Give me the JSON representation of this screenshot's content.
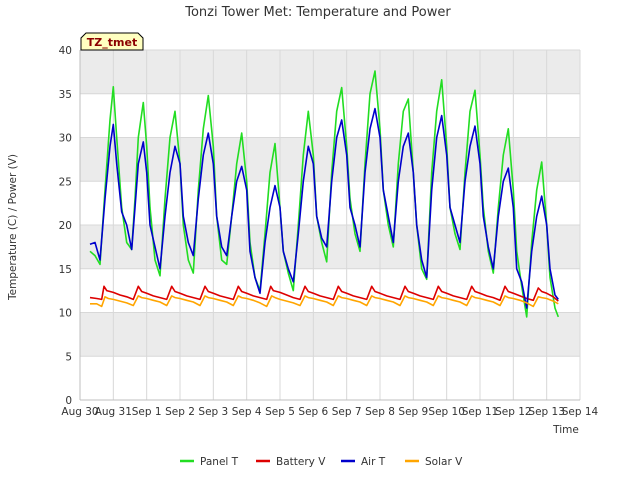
{
  "chart_data": {
    "type": "line",
    "title": "Tonzi Tower Met: Temperature and Power",
    "xlabel": "Time",
    "ylabel": "Temperature (C) / Power (V)",
    "ylim": [
      0,
      40
    ],
    "xlim": [
      0,
      15
    ],
    "yticks": [
      0,
      5,
      10,
      15,
      20,
      25,
      30,
      35,
      40
    ],
    "xticks": [
      {
        "value": 0,
        "label": "Aug 30"
      },
      {
        "value": 1,
        "label": "Aug 31"
      },
      {
        "value": 2,
        "label": "Sep 1"
      },
      {
        "value": 3,
        "label": "Sep 2"
      },
      {
        "value": 4,
        "label": "Sep 3"
      },
      {
        "value": 5,
        "label": "Sep 4"
      },
      {
        "value": 6,
        "label": "Sep 5"
      },
      {
        "value": 7,
        "label": "Sep 6"
      },
      {
        "value": 8,
        "label": "Sep 7"
      },
      {
        "value": 9,
        "label": "Sep 8"
      },
      {
        "value": 10,
        "label": "Sep 9"
      },
      {
        "value": 11,
        "label": "Sep 10"
      },
      {
        "value": 12,
        "label": "Sep 11"
      },
      {
        "value": 13,
        "label": "Sep 12"
      },
      {
        "value": 14,
        "label": "Sep 13"
      },
      {
        "value": 15,
        "label": "Sep 14"
      }
    ],
    "annotation": "TZ_tmet",
    "series": [
      {
        "name": "Panel T",
        "color": "#22dd22",
        "x": [
          0.3,
          0.45,
          0.6,
          0.75,
          0.9,
          1.0,
          1.1,
          1.25,
          1.4,
          1.55,
          1.65,
          1.75,
          1.9,
          2.0,
          2.1,
          2.25,
          2.4,
          2.55,
          2.7,
          2.85,
          3.0,
          3.1,
          3.25,
          3.4,
          3.55,
          3.7,
          3.85,
          4.0,
          4.1,
          4.25,
          4.4,
          4.55,
          4.7,
          4.85,
          5.0,
          5.1,
          5.25,
          5.4,
          5.55,
          5.7,
          5.85,
          6.0,
          6.1,
          6.25,
          6.4,
          6.55,
          6.7,
          6.85,
          7.0,
          7.1,
          7.25,
          7.4,
          7.55,
          7.7,
          7.85,
          8.0,
          8.1,
          8.25,
          8.4,
          8.55,
          8.7,
          8.85,
          9.0,
          9.1,
          9.25,
          9.4,
          9.55,
          9.7,
          9.85,
          10.0,
          10.1,
          10.25,
          10.4,
          10.55,
          10.7,
          10.85,
          11.0,
          11.1,
          11.25,
          11.4,
          11.55,
          11.7,
          11.85,
          12.0,
          12.1,
          12.25,
          12.4,
          12.55,
          12.7,
          12.85,
          13.0,
          13.1,
          13.25,
          13.4,
          13.55,
          13.7,
          13.85,
          14.0,
          14.1,
          14.25,
          14.35
        ],
        "y": [
          17.0,
          16.5,
          15.5,
          24.0,
          32.0,
          35.8,
          30.0,
          22.0,
          18.0,
          17.2,
          23.0,
          30.0,
          34.0,
          29.0,
          22.0,
          16.0,
          14.2,
          23.0,
          30.0,
          33.0,
          27.0,
          20.0,
          16.0,
          14.5,
          24.0,
          31.0,
          34.8,
          29.0,
          21.0,
          16.0,
          15.5,
          21.0,
          27.0,
          30.5,
          25.0,
          18.0,
          14.0,
          12.5,
          19.0,
          26.0,
          29.3,
          22.0,
          17.0,
          14.5,
          12.5,
          20.0,
          28.0,
          33.0,
          28.0,
          21.0,
          18.0,
          15.8,
          26.0,
          33.0,
          35.7,
          29.0,
          23.0,
          19.0,
          17.0,
          27.0,
          35.0,
          37.6,
          31.0,
          24.0,
          20.0,
          17.5,
          27.0,
          33.0,
          34.4,
          26.0,
          20.0,
          15.0,
          13.8,
          26.0,
          33.0,
          36.6,
          29.0,
          22.0,
          19.0,
          17.2,
          26.0,
          33.0,
          35.4,
          28.0,
          22.0,
          17.0,
          14.5,
          22.0,
          28.0,
          31.0,
          24.0,
          17.0,
          13.0,
          9.5,
          18.0,
          24.0,
          27.2,
          20.0,
          14.0,
          10.5,
          9.5
        ]
      },
      {
        "name": "Battery V",
        "color": "#dd0000",
        "x": [
          0.3,
          0.5,
          0.65,
          0.72,
          0.8,
          1.0,
          1.2,
          1.4,
          1.6,
          1.75,
          1.85,
          2.0,
          2.2,
          2.4,
          2.6,
          2.75,
          2.85,
          3.0,
          3.2,
          3.4,
          3.6,
          3.75,
          3.85,
          4.0,
          4.2,
          4.4,
          4.6,
          4.75,
          4.85,
          5.0,
          5.2,
          5.4,
          5.6,
          5.72,
          5.8,
          6.0,
          6.2,
          6.4,
          6.6,
          6.75,
          6.85,
          7.0,
          7.2,
          7.4,
          7.6,
          7.75,
          7.85,
          8.0,
          8.2,
          8.4,
          8.6,
          8.75,
          8.85,
          9.0,
          9.2,
          9.4,
          9.6,
          9.75,
          9.85,
          10.0,
          10.2,
          10.4,
          10.6,
          10.75,
          10.85,
          11.0,
          11.2,
          11.4,
          11.6,
          11.75,
          11.85,
          12.0,
          12.2,
          12.4,
          12.6,
          12.75,
          12.85,
          13.0,
          13.2,
          13.4,
          13.6,
          13.75,
          13.85,
          14.0,
          14.2,
          14.35
        ],
        "y": [
          11.7,
          11.6,
          11.5,
          13.0,
          12.5,
          12.3,
          12.0,
          11.8,
          11.5,
          13.0,
          12.4,
          12.2,
          11.9,
          11.7,
          11.5,
          13.0,
          12.4,
          12.2,
          11.9,
          11.7,
          11.5,
          13.0,
          12.4,
          12.2,
          11.9,
          11.7,
          11.5,
          13.0,
          12.4,
          12.2,
          11.9,
          11.7,
          11.5,
          13.0,
          12.5,
          12.3,
          12.0,
          11.7,
          11.5,
          13.0,
          12.4,
          12.2,
          11.9,
          11.7,
          11.5,
          13.0,
          12.4,
          12.2,
          11.9,
          11.7,
          11.5,
          13.0,
          12.4,
          12.2,
          11.9,
          11.7,
          11.5,
          13.0,
          12.4,
          12.2,
          11.9,
          11.7,
          11.5,
          13.0,
          12.4,
          12.2,
          11.9,
          11.7,
          11.5,
          13.0,
          12.4,
          12.2,
          11.9,
          11.7,
          11.4,
          13.0,
          12.4,
          12.2,
          11.9,
          11.6,
          11.4,
          12.8,
          12.4,
          12.2,
          11.8,
          11.3
        ]
      },
      {
        "name": "Air T",
        "color": "#0000cc",
        "x": [
          0.3,
          0.45,
          0.6,
          0.75,
          0.9,
          1.0,
          1.1,
          1.25,
          1.4,
          1.55,
          1.65,
          1.75,
          1.9,
          2.0,
          2.1,
          2.25,
          2.4,
          2.55,
          2.7,
          2.85,
          3.0,
          3.1,
          3.25,
          3.4,
          3.55,
          3.7,
          3.85,
          4.0,
          4.1,
          4.25,
          4.4,
          4.55,
          4.7,
          4.85,
          5.0,
          5.1,
          5.25,
          5.4,
          5.55,
          5.7,
          5.85,
          6.0,
          6.1,
          6.25,
          6.4,
          6.55,
          6.7,
          6.85,
          7.0,
          7.1,
          7.25,
          7.4,
          7.55,
          7.7,
          7.85,
          8.0,
          8.1,
          8.25,
          8.4,
          8.55,
          8.7,
          8.85,
          9.0,
          9.1,
          9.25,
          9.4,
          9.55,
          9.7,
          9.85,
          10.0,
          10.1,
          10.25,
          10.4,
          10.55,
          10.7,
          10.85,
          11.0,
          11.1,
          11.25,
          11.4,
          11.55,
          11.7,
          11.85,
          12.0,
          12.1,
          12.25,
          12.4,
          12.55,
          12.7,
          12.85,
          13.0,
          13.1,
          13.25,
          13.4,
          13.55,
          13.7,
          13.85,
          14.0,
          14.1,
          14.25,
          14.35
        ],
        "y": [
          17.8,
          18.0,
          16.0,
          23.0,
          29.0,
          31.5,
          27.0,
          21.5,
          20.0,
          17.2,
          22.0,
          27.0,
          29.5,
          26.0,
          20.0,
          17.5,
          15.0,
          21.0,
          26.0,
          29.0,
          27.0,
          21.0,
          18.0,
          16.5,
          23.0,
          28.0,
          30.5,
          27.0,
          21.0,
          17.5,
          16.5,
          21.0,
          25.0,
          26.7,
          24.0,
          17.0,
          14.0,
          12.2,
          18.0,
          22.0,
          24.5,
          22.0,
          17.0,
          15.0,
          13.5,
          19.0,
          25.0,
          29.0,
          27.0,
          21.0,
          18.5,
          17.5,
          25.0,
          30.0,
          32.0,
          28.0,
          22.0,
          20.0,
          17.5,
          26.0,
          31.0,
          33.3,
          30.0,
          24.0,
          21.0,
          18.0,
          25.0,
          29.0,
          30.5,
          26.0,
          20.0,
          16.0,
          14.0,
          24.0,
          30.0,
          32.5,
          28.0,
          22.0,
          20.0,
          18.0,
          25.0,
          29.0,
          31.3,
          27.0,
          21.0,
          17.5,
          15.0,
          21.0,
          25.0,
          26.5,
          22.0,
          15.0,
          13.5,
          10.5,
          17.0,
          21.0,
          23.3,
          20.0,
          15.0,
          12.0,
          11.5
        ]
      },
      {
        "name": "Solar V",
        "color": "#ffa500",
        "x": [
          0.3,
          0.5,
          0.65,
          0.75,
          0.85,
          1.0,
          1.2,
          1.4,
          1.6,
          1.75,
          1.85,
          2.0,
          2.2,
          2.4,
          2.6,
          2.75,
          2.85,
          3.0,
          3.2,
          3.4,
          3.6,
          3.75,
          3.85,
          4.0,
          4.2,
          4.4,
          4.6,
          4.75,
          4.85,
          5.0,
          5.2,
          5.4,
          5.6,
          5.75,
          5.85,
          6.0,
          6.2,
          6.4,
          6.6,
          6.75,
          6.85,
          7.0,
          7.2,
          7.4,
          7.6,
          7.75,
          7.85,
          8.0,
          8.2,
          8.4,
          8.6,
          8.75,
          8.85,
          9.0,
          9.2,
          9.4,
          9.6,
          9.75,
          9.85,
          10.0,
          10.2,
          10.4,
          10.6,
          10.75,
          10.85,
          11.0,
          11.2,
          11.4,
          11.6,
          11.75,
          11.85,
          12.0,
          12.2,
          12.4,
          12.6,
          12.75,
          12.85,
          13.0,
          13.2,
          13.4,
          13.6,
          13.75,
          13.85,
          14.0,
          14.2,
          14.35
        ],
        "y": [
          11.0,
          11.0,
          10.7,
          11.8,
          11.6,
          11.5,
          11.3,
          11.1,
          10.8,
          11.9,
          11.7,
          11.6,
          11.4,
          11.2,
          10.8,
          11.9,
          11.7,
          11.6,
          11.4,
          11.2,
          10.8,
          11.9,
          11.7,
          11.6,
          11.4,
          11.2,
          10.8,
          11.9,
          11.7,
          11.6,
          11.4,
          11.1,
          10.7,
          11.9,
          11.7,
          11.5,
          11.3,
          11.1,
          10.8,
          11.9,
          11.7,
          11.6,
          11.4,
          11.2,
          10.8,
          11.9,
          11.7,
          11.6,
          11.4,
          11.2,
          10.8,
          11.9,
          11.7,
          11.6,
          11.4,
          11.2,
          10.8,
          11.9,
          11.7,
          11.6,
          11.4,
          11.2,
          10.8,
          11.9,
          11.7,
          11.6,
          11.4,
          11.2,
          10.8,
          11.9,
          11.7,
          11.6,
          11.4,
          11.2,
          10.8,
          11.9,
          11.7,
          11.6,
          11.4,
          11.1,
          10.7,
          11.8,
          11.7,
          11.6,
          11.3,
          11.0
        ]
      }
    ]
  }
}
